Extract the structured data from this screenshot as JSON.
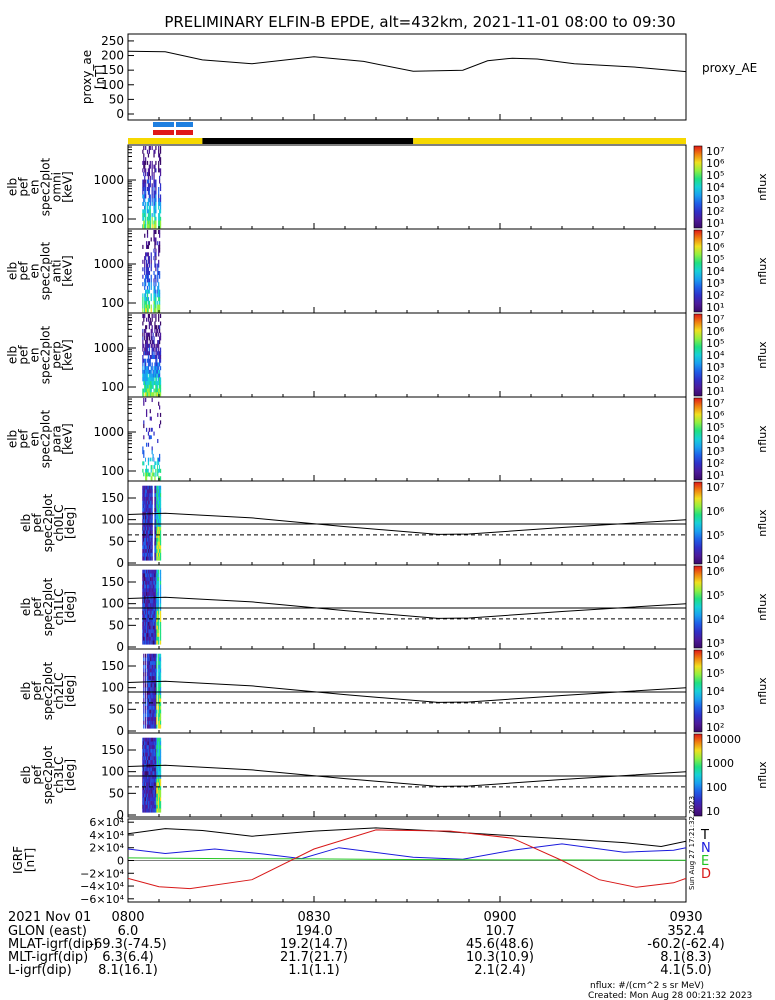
{
  "title": "PRELIMINARY ELFIN-B EPDE, alt=432km, 2021-11-01 08:00 to 09:30",
  "colors": {
    "accent_yellow": "#f6d800",
    "black": "#000000"
  },
  "chart_data": [
    {
      "type": "line",
      "name": "proxy_ae",
      "ylabel": "proxy_ae\n[nT]",
      "ylabel_lines": [
        "proxy_ae",
        "[nT]"
      ],
      "legend": "proxy_AE",
      "yticks": [
        "250",
        "200",
        "150",
        "100",
        "50",
        "0"
      ],
      "ylim": [
        0,
        260
      ],
      "x_minutes": [
        0,
        6,
        12,
        20,
        30,
        38,
        46,
        54,
        58,
        62,
        66,
        72,
        82,
        90
      ],
      "y": [
        215,
        213,
        185,
        172,
        196,
        180,
        146,
        150,
        182,
        191,
        188,
        172,
        160,
        145
      ]
    },
    {
      "type": "heatmap",
      "ylabel_lines": [
        "elb",
        "pef",
        "en",
        "spec2plot",
        "omni",
        "[keV]"
      ],
      "yticks": [
        "1000",
        "100"
      ],
      "cbar_label": "nflux",
      "cbar_ticks": [
        "10⁷",
        "10⁶",
        "10⁵",
        "10⁴",
        "10³",
        "10²",
        "10¹"
      ]
    },
    {
      "type": "heatmap",
      "ylabel_lines": [
        "elb",
        "pef",
        "en",
        "spec2plot",
        "anti",
        "[keV]"
      ],
      "yticks": [
        "1000",
        "100"
      ],
      "cbar_label": "nflux",
      "cbar_ticks": [
        "10⁷",
        "10⁶",
        "10⁵",
        "10⁴",
        "10³",
        "10²",
        "10¹"
      ]
    },
    {
      "type": "heatmap",
      "ylabel_lines": [
        "elb",
        "pef",
        "en",
        "spec2plot",
        "perp",
        "[keV]"
      ],
      "yticks": [
        "1000",
        "100"
      ],
      "cbar_label": "nflux",
      "cbar_ticks": [
        "10⁷",
        "10⁶",
        "10⁵",
        "10⁴",
        "10³",
        "10²",
        "10¹"
      ]
    },
    {
      "type": "heatmap",
      "ylabel_lines": [
        "elb",
        "pef",
        "en",
        "spec2plot",
        "para",
        "[keV]"
      ],
      "yticks": [
        "1000",
        "100"
      ],
      "cbar_label": "nflux",
      "cbar_ticks": [
        "10⁷",
        "10⁶",
        "10⁵",
        "10⁴",
        "10³",
        "10²",
        "10¹"
      ]
    },
    {
      "type": "heatmap",
      "ylabel_lines": [
        "elb",
        "pef",
        "spec2plot",
        "ch0LC",
        "[deg]"
      ],
      "yticks": [
        "150",
        "100",
        "50",
        "0"
      ],
      "cbar_label": "nflux",
      "cbar_ticks": [
        "10⁷",
        "10⁶",
        "10⁵",
        "10⁴"
      ]
    },
    {
      "type": "heatmap",
      "ylabel_lines": [
        "elb",
        "pef",
        "spec2plot",
        "ch1LC",
        "[deg]"
      ],
      "yticks": [
        "150",
        "100",
        "50",
        "0"
      ],
      "cbar_label": "nflux",
      "cbar_ticks": [
        "10⁶",
        "10⁵",
        "10⁴",
        "10³"
      ]
    },
    {
      "type": "heatmap",
      "ylabel_lines": [
        "elb",
        "pef",
        "spec2plot",
        "ch2LC",
        "[deg]"
      ],
      "yticks": [
        "150",
        "100",
        "50",
        "0"
      ],
      "cbar_label": "nflux",
      "cbar_ticks": [
        "10⁶",
        "10⁵",
        "10⁴",
        "10³",
        "10²"
      ]
    },
    {
      "type": "heatmap",
      "ylabel_lines": [
        "elb",
        "pef",
        "spec2plot",
        "ch3LC",
        "[deg]"
      ],
      "yticks": [
        "150",
        "100",
        "50",
        "0"
      ],
      "cbar_label": "nflux",
      "cbar_ticks": [
        "10000",
        "1000",
        "100",
        "10"
      ]
    },
    {
      "type": "line",
      "name": "IGRF",
      "ylabel_lines": [
        "IGRF",
        "[nT]"
      ],
      "yticks": [
        "6×10⁴",
        "4×10⁴",
        "2×10⁴",
        "0",
        "−2×10⁴",
        "−4×10⁴",
        "−6×10⁴"
      ],
      "ylim": [
        -65000,
        65000
      ],
      "legend": [
        "T",
        "N",
        "E",
        "D"
      ],
      "series": [
        {
          "name": "T",
          "color": "#000000",
          "x_minutes": [
            0,
            6,
            12,
            20,
            30,
            40,
            50,
            60,
            70,
            80,
            86,
            90
          ],
          "y": [
            42000,
            50000,
            47000,
            38000,
            46000,
            51000,
            46000,
            40000,
            34000,
            28000,
            22000,
            30000
          ]
        },
        {
          "name": "N",
          "color": "#1a1adc",
          "x_minutes": [
            0,
            6,
            14,
            22,
            28,
            34,
            46,
            54,
            62,
            70,
            80,
            88,
            90
          ],
          "y": [
            18000,
            11000,
            18000,
            10000,
            3000,
            20000,
            5000,
            2000,
            16000,
            26000,
            13000,
            16000,
            20000
          ]
        },
        {
          "name": "E",
          "color": "#22c422",
          "x_minutes": [
            0,
            15,
            30,
            45,
            60,
            75,
            90
          ],
          "y": [
            4000,
            3000,
            2500,
            1500,
            1000,
            800,
            500
          ]
        },
        {
          "name": "D",
          "color": "#d81818",
          "x_minutes": [
            0,
            5,
            10,
            20,
            30,
            40,
            52,
            62,
            70,
            76,
            82,
            88,
            90
          ],
          "y": [
            -28000,
            -41000,
            -44000,
            -30000,
            18000,
            48000,
            46000,
            35000,
            0,
            -30000,
            -42000,
            -35000,
            -28000
          ]
        }
      ]
    }
  ],
  "xaxis": {
    "label_left": "2021 Nov 01",
    "ticks": [
      "0800",
      "0830",
      "0900",
      "0930"
    ],
    "rows": [
      {
        "label": "GLON (east)",
        "values": [
          "6.0",
          "194.0",
          "10.7",
          "352.4"
        ]
      },
      {
        "label": "MLAT-igrf(dip)",
        "values": [
          "-69.3(-74.5)",
          "19.2(14.7)",
          "45.6(48.6)",
          "-60.2(-62.4)"
        ]
      },
      {
        "label": "MLT-igrf(dip)",
        "values": [
          "6.3(6.4)",
          "21.7(21.7)",
          "10.3(10.9)",
          "8.1(8.3)"
        ]
      },
      {
        "label": "L-igrf(dip)",
        "values": [
          "8.1(16.1)",
          "1.1(1.1)",
          "2.1(2.4)",
          "4.1(5.0)"
        ]
      }
    ]
  },
  "footer": {
    "units": "nflux: #/(cm^2 s sr MeV)",
    "created": "Created: Mon Aug 28 00:21:32 2023",
    "side_stamp": "Sun Aug 27 17:21:32 2023"
  }
}
